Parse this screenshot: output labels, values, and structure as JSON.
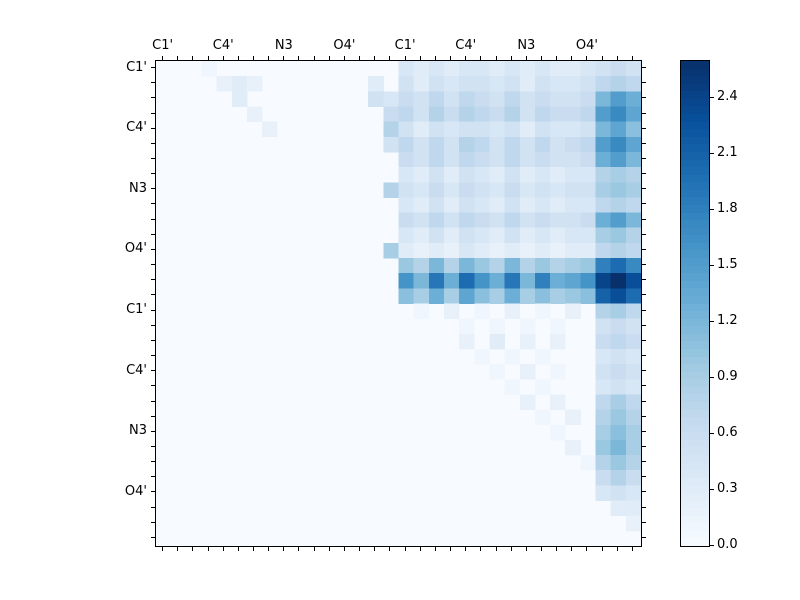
{
  "chart_data": {
    "type": "heatmap",
    "title": "",
    "colormap": "Blues",
    "colormap_anchors": [
      [
        0.0,
        247,
        251,
        255
      ],
      [
        0.125,
        222,
        235,
        247
      ],
      [
        0.25,
        198,
        219,
        239
      ],
      [
        0.375,
        158,
        202,
        225
      ],
      [
        0.5,
        107,
        174,
        214
      ],
      [
        0.625,
        66,
        146,
        198
      ],
      [
        0.75,
        33,
        113,
        181
      ],
      [
        0.875,
        8,
        81,
        156
      ],
      [
        1.0,
        8,
        48,
        107
      ]
    ],
    "vmin": 0.0,
    "vmax": 2.6,
    "grid_size": 32,
    "group_size": 4,
    "grid": false,
    "legend_position": "right-colorbar",
    "x_tick_labels": [
      "C1'",
      "C4'",
      "N3",
      "O4'",
      "C1'",
      "C4'",
      "N3",
      "O4'"
    ],
    "y_tick_labels": [
      "C1'",
      "C4'",
      "N3",
      "O4'",
      "C1'",
      "C4'",
      "N3",
      "O4'"
    ],
    "colorbar_ticks": [
      "0.0",
      "0.3",
      "0.6",
      "0.9",
      "1.2",
      "1.5",
      "1.8",
      "2.1",
      "2.4"
    ],
    "xlabel": "",
    "ylabel": "",
    "matrix": [
      [
        0,
        0,
        0,
        0.1,
        0,
        0,
        0,
        0,
        0,
        0,
        0,
        0,
        0,
        0,
        0,
        0,
        0.4,
        0.3,
        0.4,
        0.3,
        0.4,
        0.4,
        0.3,
        0.4,
        0.3,
        0.4,
        0.3,
        0.3,
        0.4,
        0.5,
        0.6,
        0.5
      ],
      [
        0,
        0,
        0,
        0,
        0.2,
        0.3,
        0.2,
        0,
        0,
        0,
        0,
        0,
        0,
        0,
        0.3,
        0,
        0.5,
        0.3,
        0.5,
        0.4,
        0.5,
        0.5,
        0.4,
        0.5,
        0.3,
        0.5,
        0.4,
        0.4,
        0.5,
        0.7,
        0.8,
        0.7
      ],
      [
        0,
        0,
        0,
        0,
        0,
        0.3,
        0,
        0,
        0,
        0,
        0,
        0,
        0,
        0,
        0.5,
        0.4,
        0.6,
        0.5,
        0.7,
        0.5,
        0.7,
        0.6,
        0.5,
        0.7,
        0.5,
        0.6,
        0.5,
        0.5,
        0.6,
        1.2,
        1.5,
        1.3
      ],
      [
        0,
        0,
        0,
        0,
        0,
        0,
        0.2,
        0,
        0,
        0,
        0,
        0,
        0,
        0,
        0,
        0.6,
        0.7,
        0.5,
        0.8,
        0.6,
        0.8,
        0.7,
        0.6,
        0.8,
        0.5,
        0.7,
        0.6,
        0.6,
        0.7,
        1.5,
        1.7,
        1.4
      ],
      [
        0,
        0,
        0,
        0,
        0,
        0,
        0,
        0.2,
        0,
        0,
        0,
        0,
        0,
        0,
        0,
        0.8,
        0.5,
        0.3,
        0.5,
        0.4,
        0.5,
        0.5,
        0.4,
        0.5,
        0.3,
        0.5,
        0.4,
        0.4,
        0.5,
        1.2,
        1.4,
        1.1
      ],
      [
        0,
        0,
        0,
        0,
        0,
        0,
        0,
        0,
        0,
        0,
        0,
        0,
        0,
        0,
        0,
        0.5,
        0.7,
        0.5,
        0.7,
        0.5,
        0.8,
        0.7,
        0.5,
        0.7,
        0.5,
        0.7,
        0.5,
        0.6,
        0.7,
        1.5,
        1.7,
        1.4
      ],
      [
        0,
        0,
        0,
        0,
        0,
        0,
        0,
        0,
        0,
        0,
        0,
        0,
        0,
        0,
        0,
        0,
        0.6,
        0.5,
        0.7,
        0.5,
        0.7,
        0.6,
        0.5,
        0.7,
        0.5,
        0.6,
        0.5,
        0.5,
        0.6,
        1.3,
        1.5,
        1.2
      ],
      [
        0,
        0,
        0,
        0,
        0,
        0,
        0,
        0,
        0,
        0,
        0,
        0,
        0,
        0,
        0,
        0,
        0.4,
        0.3,
        0.5,
        0.3,
        0.5,
        0.4,
        0.3,
        0.5,
        0.3,
        0.4,
        0.3,
        0.4,
        0.4,
        0.8,
        0.9,
        0.8
      ],
      [
        0,
        0,
        0,
        0,
        0,
        0,
        0,
        0,
        0,
        0,
        0,
        0,
        0,
        0,
        0,
        0.8,
        0.5,
        0.4,
        0.6,
        0.4,
        0.6,
        0.5,
        0.4,
        0.6,
        0.4,
        0.5,
        0.4,
        0.5,
        0.5,
        0.9,
        1.0,
        0.9
      ],
      [
        0,
        0,
        0,
        0,
        0,
        0,
        0,
        0,
        0,
        0,
        0,
        0,
        0,
        0,
        0,
        0,
        0.4,
        0.3,
        0.5,
        0.3,
        0.5,
        0.4,
        0.3,
        0.5,
        0.3,
        0.4,
        0.3,
        0.4,
        0.4,
        0.7,
        0.8,
        0.7
      ],
      [
        0,
        0,
        0,
        0,
        0,
        0,
        0,
        0,
        0,
        0,
        0,
        0,
        0,
        0,
        0,
        0,
        0.6,
        0.5,
        0.7,
        0.5,
        0.7,
        0.6,
        0.5,
        0.7,
        0.5,
        0.6,
        0.5,
        0.5,
        0.6,
        1.3,
        1.5,
        1.2
      ],
      [
        0,
        0,
        0,
        0,
        0,
        0,
        0,
        0,
        0,
        0,
        0,
        0,
        0,
        0,
        0,
        0,
        0.4,
        0.3,
        0.5,
        0.3,
        0.5,
        0.4,
        0.3,
        0.5,
        0.3,
        0.4,
        0.3,
        0.4,
        0.4,
        0.9,
        1.0,
        0.8
      ],
      [
        0,
        0,
        0,
        0,
        0,
        0,
        0,
        0,
        0,
        0,
        0,
        0,
        0,
        0,
        0,
        0.9,
        0.3,
        0.2,
        0.3,
        0.2,
        0.4,
        0.3,
        0.2,
        0.3,
        0.2,
        0.3,
        0.2,
        0.3,
        0.3,
        0.7,
        0.8,
        0.7
      ],
      [
        0,
        0,
        0,
        0,
        0,
        0,
        0,
        0,
        0,
        0,
        0,
        0,
        0,
        0,
        0,
        0,
        1.0,
        0.8,
        1.2,
        0.8,
        1.2,
        1.0,
        0.8,
        1.2,
        0.8,
        1.0,
        0.8,
        0.9,
        1.0,
        1.8,
        2.0,
        1.7
      ],
      [
        0,
        0,
        0,
        0,
        0,
        0,
        0,
        0,
        0,
        0,
        0,
        0,
        0,
        0,
        0,
        0,
        1.6,
        1.2,
        1.9,
        1.3,
        2.0,
        1.6,
        1.3,
        1.9,
        1.2,
        1.8,
        1.3,
        1.4,
        1.6,
        2.4,
        2.6,
        2.3
      ],
      [
        0,
        0,
        0,
        0,
        0,
        0,
        0,
        0,
        0,
        0,
        0,
        0,
        0,
        0,
        0,
        0,
        1.1,
        0.9,
        1.3,
        0.9,
        1.4,
        1.1,
        0.9,
        1.3,
        0.9,
        1.1,
        0.9,
        1.0,
        1.1,
        2.1,
        2.3,
        2.0
      ],
      [
        0,
        0,
        0,
        0,
        0,
        0,
        0,
        0,
        0,
        0,
        0,
        0,
        0,
        0,
        0,
        0,
        0,
        0.1,
        0,
        0.2,
        0,
        0.1,
        0,
        0.2,
        0,
        0.1,
        0,
        0.2,
        0,
        0.8,
        0.9,
        0.7
      ],
      [
        0,
        0,
        0,
        0,
        0,
        0,
        0,
        0,
        0,
        0,
        0,
        0,
        0,
        0,
        0,
        0,
        0,
        0,
        0,
        0,
        0.1,
        0,
        0.1,
        0,
        0.1,
        0,
        0.1,
        0,
        0,
        0.5,
        0.6,
        0.5
      ],
      [
        0,
        0,
        0,
        0,
        0,
        0,
        0,
        0,
        0,
        0,
        0,
        0,
        0,
        0,
        0,
        0,
        0,
        0,
        0,
        0,
        0.2,
        0,
        0.3,
        0,
        0.2,
        0,
        0.2,
        0,
        0,
        0.6,
        0.7,
        0.6
      ],
      [
        0,
        0,
        0,
        0,
        0,
        0,
        0,
        0,
        0,
        0,
        0,
        0,
        0,
        0,
        0,
        0,
        0,
        0,
        0,
        0,
        0,
        0.1,
        0,
        0.1,
        0,
        0.1,
        0,
        0,
        0,
        0.4,
        0.5,
        0.4
      ],
      [
        0,
        0,
        0,
        0,
        0,
        0,
        0,
        0,
        0,
        0,
        0,
        0,
        0,
        0,
        0,
        0,
        0,
        0,
        0,
        0,
        0,
        0,
        0.1,
        0,
        0.2,
        0,
        0.1,
        0,
        0,
        0.5,
        0.6,
        0.5
      ],
      [
        0,
        0,
        0,
        0,
        0,
        0,
        0,
        0,
        0,
        0,
        0,
        0,
        0,
        0,
        0,
        0,
        0,
        0,
        0,
        0,
        0,
        0,
        0,
        0.1,
        0,
        0.1,
        0,
        0,
        0,
        0.4,
        0.5,
        0.4
      ],
      [
        0,
        0,
        0,
        0,
        0,
        0,
        0,
        0,
        0,
        0,
        0,
        0,
        0,
        0,
        0,
        0,
        0,
        0,
        0,
        0,
        0,
        0,
        0,
        0,
        0.2,
        0,
        0.2,
        0,
        0,
        0.7,
        0.9,
        0.7
      ],
      [
        0,
        0,
        0,
        0,
        0,
        0,
        0,
        0,
        0,
        0,
        0,
        0,
        0,
        0,
        0,
        0,
        0,
        0,
        0,
        0,
        0,
        0,
        0,
        0,
        0,
        0.1,
        0,
        0.2,
        0,
        0.8,
        1.0,
        0.8
      ],
      [
        0,
        0,
        0,
        0,
        0,
        0,
        0,
        0,
        0,
        0,
        0,
        0,
        0,
        0,
        0,
        0,
        0,
        0,
        0,
        0,
        0,
        0,
        0,
        0,
        0,
        0,
        0.1,
        0,
        0,
        0.9,
        1.1,
        0.9
      ],
      [
        0,
        0,
        0,
        0,
        0,
        0,
        0,
        0,
        0,
        0,
        0,
        0,
        0,
        0,
        0,
        0,
        0,
        0,
        0,
        0,
        0,
        0,
        0,
        0,
        0,
        0,
        0,
        0.2,
        0,
        1.0,
        1.2,
        0.9
      ],
      [
        0,
        0,
        0,
        0,
        0,
        0,
        0,
        0,
        0,
        0,
        0,
        0,
        0,
        0,
        0,
        0,
        0,
        0,
        0,
        0,
        0,
        0,
        0,
        0,
        0,
        0,
        0,
        0,
        0.1,
        0.8,
        1.0,
        0.8
      ],
      [
        0,
        0,
        0,
        0,
        0,
        0,
        0,
        0,
        0,
        0,
        0,
        0,
        0,
        0,
        0,
        0,
        0,
        0,
        0,
        0,
        0,
        0,
        0,
        0,
        0,
        0,
        0,
        0,
        0,
        0.6,
        0.8,
        0.6
      ],
      [
        0,
        0,
        0,
        0,
        0,
        0,
        0,
        0,
        0,
        0,
        0,
        0,
        0,
        0,
        0,
        0,
        0,
        0,
        0,
        0,
        0,
        0,
        0,
        0,
        0,
        0,
        0,
        0,
        0,
        0.4,
        0.5,
        0.4
      ],
      [
        0,
        0,
        0,
        0,
        0,
        0,
        0,
        0,
        0,
        0,
        0,
        0,
        0,
        0,
        0,
        0,
        0,
        0,
        0,
        0,
        0,
        0,
        0,
        0,
        0,
        0,
        0,
        0,
        0,
        0,
        0.3,
        0.3
      ],
      [
        0,
        0,
        0,
        0,
        0,
        0,
        0,
        0,
        0,
        0,
        0,
        0,
        0,
        0,
        0,
        0,
        0,
        0,
        0,
        0,
        0,
        0,
        0,
        0,
        0,
        0,
        0,
        0,
        0,
        0,
        0,
        0.2
      ],
      [
        0,
        0,
        0,
        0,
        0,
        0,
        0,
        0,
        0,
        0,
        0,
        0,
        0,
        0,
        0,
        0,
        0,
        0,
        0,
        0,
        0,
        0,
        0,
        0,
        0,
        0,
        0,
        0,
        0,
        0,
        0,
        0
      ]
    ]
  }
}
